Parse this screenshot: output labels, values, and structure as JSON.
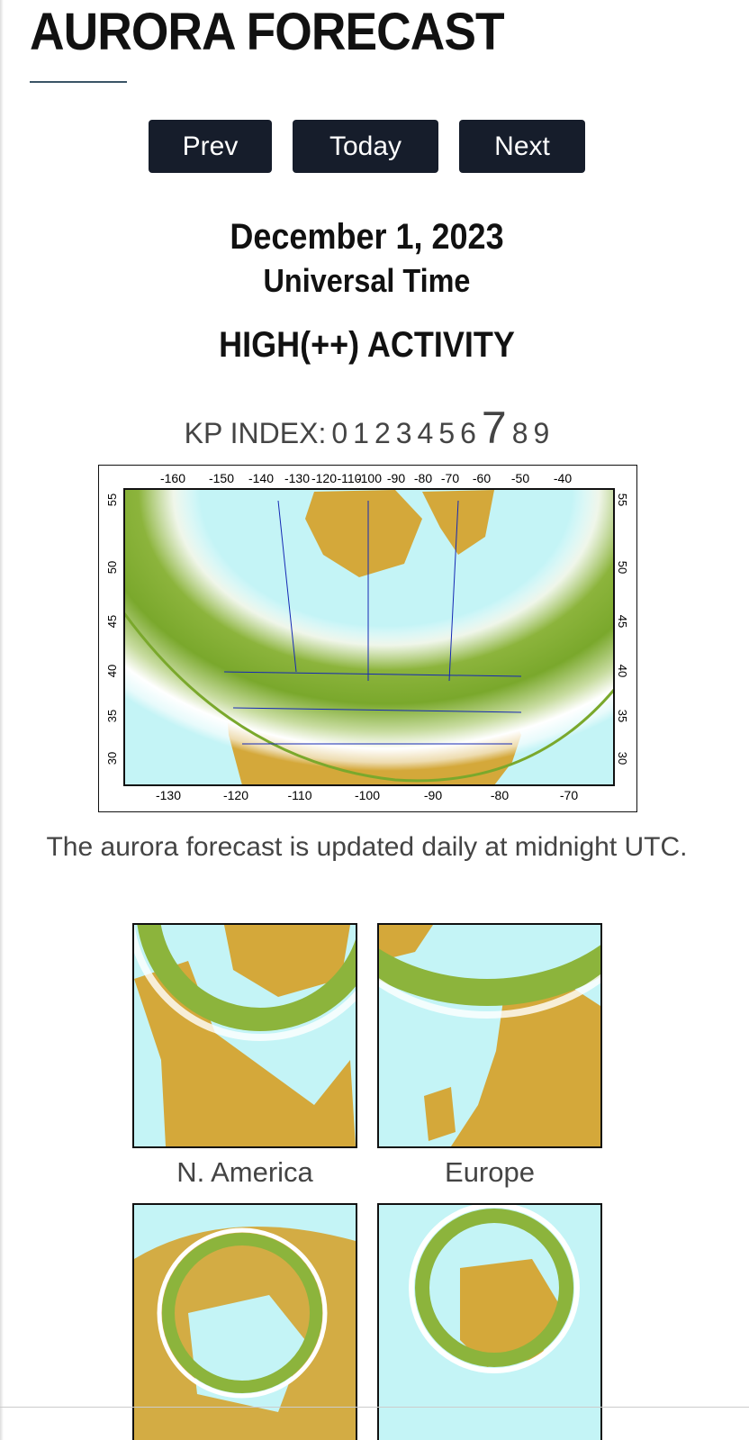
{
  "header": {
    "title": "AURORA FORECAST"
  },
  "nav": {
    "buttons": [
      "Prev",
      "Today",
      "Next"
    ]
  },
  "forecast": {
    "date": "December 1, 2023",
    "time_basis": "Universal Time",
    "activity": "HIGH(++) ACTIVITY",
    "kp_label": "KP INDEX:",
    "kp_levels": [
      "0",
      "1",
      "2",
      "3",
      "4",
      "5",
      "6",
      "7",
      "8",
      "9"
    ],
    "kp_selected": "7"
  },
  "map": {
    "top_labels": [
      "-160",
      "-150",
      "-140",
      "-130",
      "-120",
      "-110",
      "-100",
      "-90",
      "-80",
      "-70",
      "-60",
      "-50",
      "-40"
    ],
    "bottom_labels": [
      "-130",
      "-120",
      "-110",
      "-100",
      "-90",
      "-80",
      "-70"
    ],
    "left_labels": [
      "55",
      "50",
      "45",
      "40",
      "35",
      "30"
    ],
    "right_labels": [
      "55",
      "50",
      "45",
      "40",
      "35",
      "30"
    ]
  },
  "caption": "The aurora forecast is updated daily at midnight UTC.",
  "regions": [
    "N. America",
    "Europe"
  ]
}
